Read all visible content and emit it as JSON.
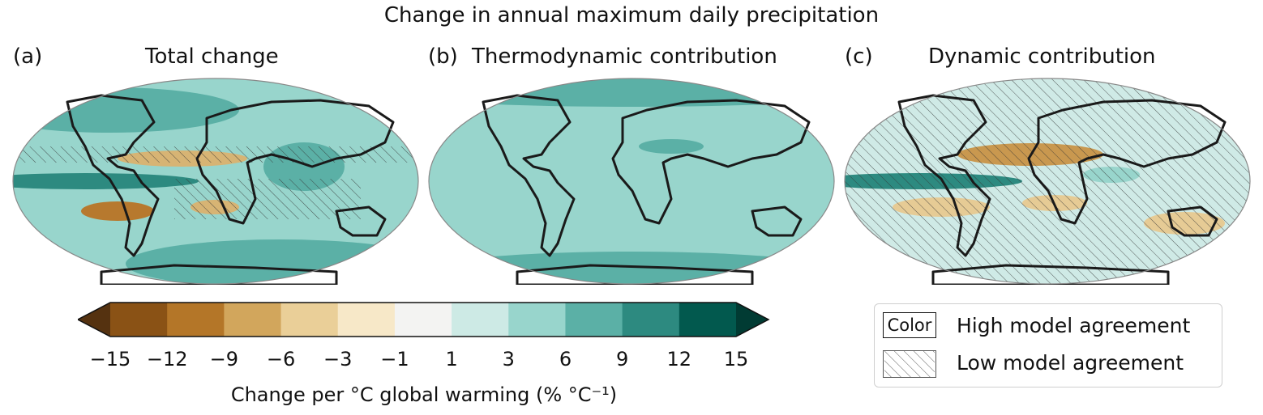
{
  "figure": {
    "title": "Change in annual maximum daily precipitation",
    "panels": [
      {
        "label": "(a)",
        "title": "Total change",
        "colors": {
          "ocean": "#98d5cc",
          "wet": "#5bb0a6",
          "wetter": "#2d8a80",
          "dry": "#d7b474",
          "drier": "#b7792e"
        }
      },
      {
        "label": "(b)",
        "title": "Thermodynamic contribution",
        "colors": {
          "ocean": "#98d5cc",
          "wet": "#5bb0a6"
        }
      },
      {
        "label": "(c)",
        "title": "Dynamic contribution",
        "colors": {
          "ocean": "#cfeae6",
          "wet": "#98d5cc",
          "dry": "#e6cb95",
          "drier": "#c9984f"
        }
      }
    ],
    "colorbar": {
      "ticks": [
        "−15",
        "−12",
        "−9",
        "−6",
        "−3",
        "−1",
        "1",
        "3",
        "6",
        "9",
        "12",
        "15"
      ],
      "tick_values": [
        -15,
        -12,
        -9,
        -6,
        -3,
        -1,
        1,
        3,
        6,
        9,
        12,
        15
      ],
      "colors": [
        "#8a5215",
        "#b47628",
        "#d2a65c",
        "#eacf98",
        "#f7e8c8",
        "#f3f3f2",
        "#cdeae5",
        "#98d5cc",
        "#5bb0a6",
        "#2d8a80",
        "#02594e"
      ],
      "extend_low_color": "#553210",
      "extend_high_color": "#013b33",
      "label": "Change per °C global warming (% °C⁻¹)"
    },
    "legend": {
      "swatch_text": "Color",
      "items": [
        "High model agreement",
        "Low model agreement"
      ]
    }
  }
}
